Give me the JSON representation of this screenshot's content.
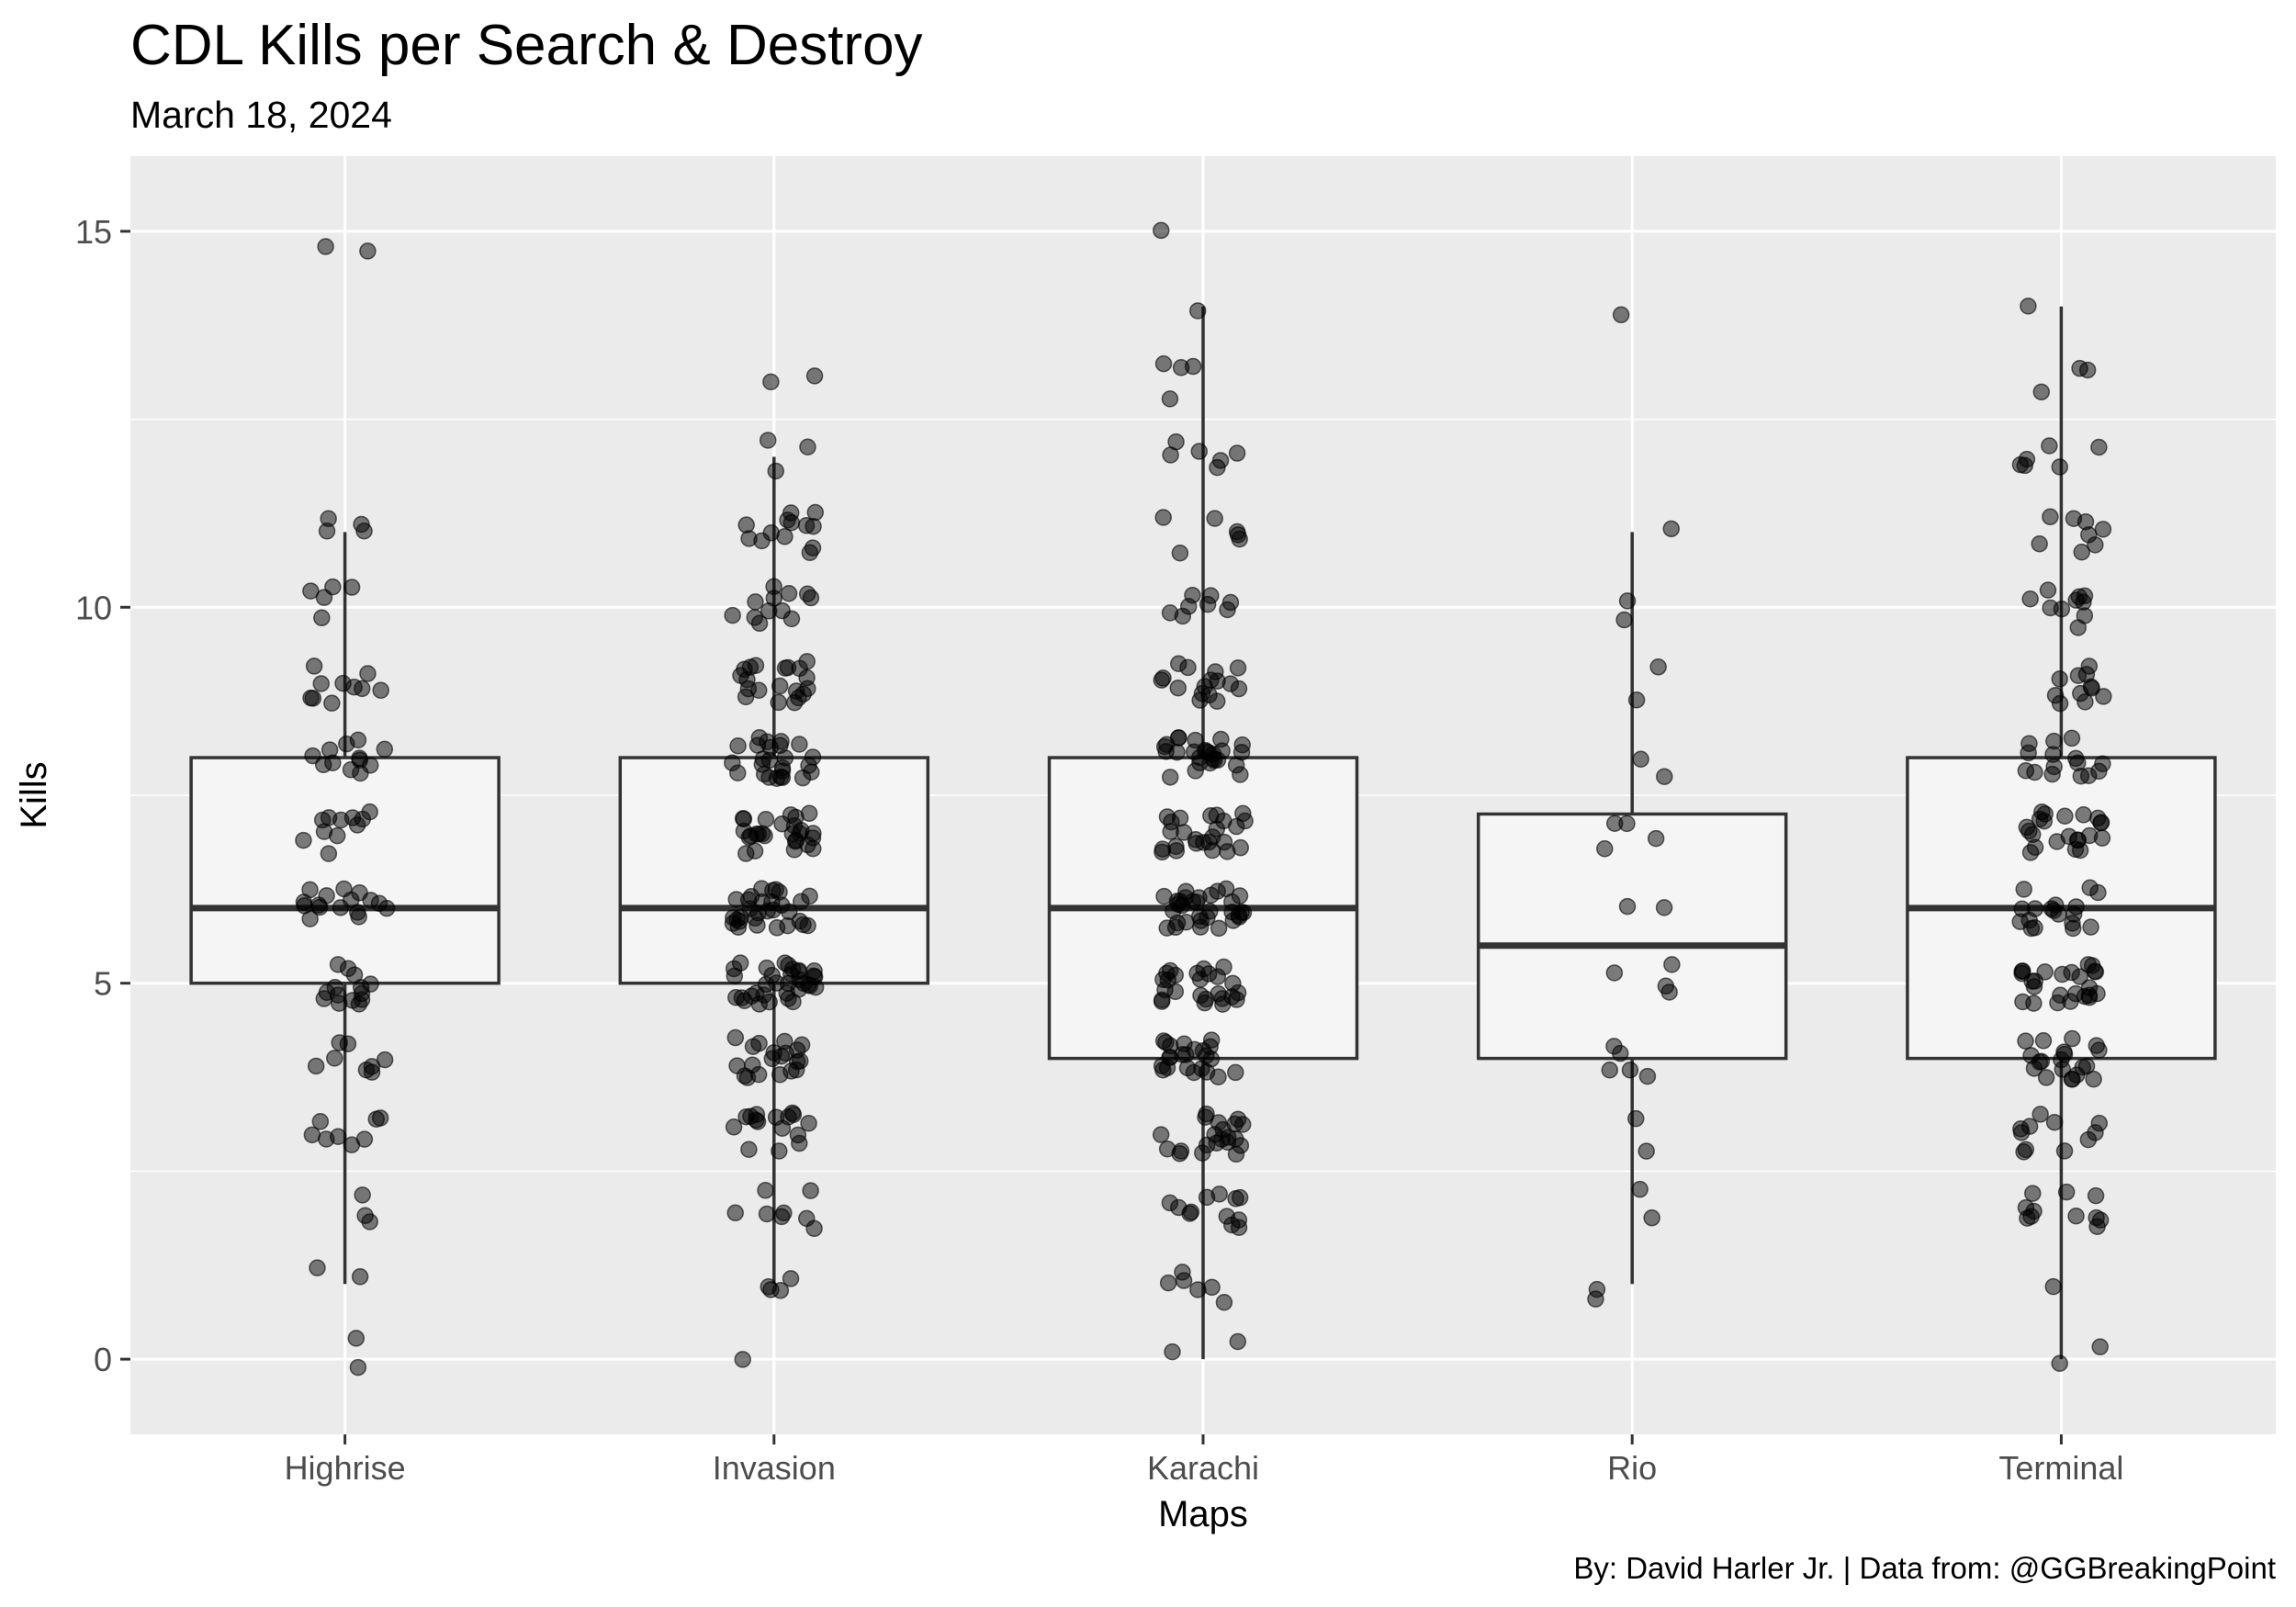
{
  "chart_data": {
    "type": "box",
    "title": "CDL Kills per Search & Destroy",
    "subtitle": "March 18, 2024",
    "caption": "By: David Harler Jr. | Data from: @GGBreakingPoint",
    "xlabel": "Maps",
    "ylabel": "Kills",
    "ylim": [
      -1,
      16
    ],
    "yticks": [
      0,
      5,
      10,
      15
    ],
    "grid": true,
    "legend": "none",
    "colors": {
      "panel": "#ebebeb",
      "grid": "#ffffff",
      "box_fill": "#f5f5f5",
      "box_line": "#333333",
      "point": "#000000"
    },
    "categories": [
      "Highrise",
      "Invasion",
      "Karachi",
      "Rio",
      "Terminal"
    ],
    "boxes": [
      {
        "name": "Highrise",
        "min": 1,
        "q1": 5,
        "median": 6,
        "q3": 8,
        "max": 11
      },
      {
        "name": "Invasion",
        "min": 1,
        "q1": 5,
        "median": 6,
        "q3": 8,
        "max": 12
      },
      {
        "name": "Karachi",
        "min": 0,
        "q1": 4,
        "median": 6,
        "q3": 8,
        "max": 14
      },
      {
        "name": "Rio",
        "min": 1,
        "q1": 4,
        "median": 5.5,
        "q3": 7.25,
        "max": 11
      },
      {
        "name": "Terminal",
        "min": 0,
        "q1": 4,
        "median": 6,
        "q3": 8,
        "max": 14
      }
    ],
    "points": {
      "Highrise": [
        0,
        0,
        1,
        1,
        2,
        2,
        2,
        3,
        3,
        3,
        3,
        3,
        3,
        3,
        3,
        4,
        4,
        4,
        4,
        4,
        4,
        4,
        4,
        5,
        5,
        5,
        5,
        5,
        5,
        5,
        5,
        5,
        5,
        5,
        5,
        5,
        5,
        6,
        6,
        6,
        6,
        6,
        6,
        6,
        6,
        6,
        6,
        6,
        6,
        6,
        6,
        6,
        6,
        7,
        7,
        7,
        7,
        7,
        7,
        7,
        7,
        7,
        7,
        7,
        8,
        8,
        8,
        8,
        8,
        8,
        8,
        8,
        8,
        8,
        8,
        8,
        9,
        9,
        9,
        9,
        9,
        9,
        9,
        9,
        9,
        9,
        10,
        10,
        10,
        10,
        10,
        11,
        11,
        11,
        11,
        15,
        15
      ],
      "Invasion": [
        0,
        1,
        1,
        1,
        1,
        2,
        2,
        2,
        2,
        2,
        2,
        2,
        2,
        3,
        3,
        3,
        3,
        3,
        3,
        3,
        3,
        3,
        3,
        3,
        3,
        3,
        3,
        3,
        3,
        4,
        4,
        4,
        4,
        4,
        4,
        4,
        4,
        4,
        4,
        4,
        4,
        4,
        4,
        4,
        4,
        4,
        4,
        4,
        4,
        5,
        5,
        5,
        5,
        5,
        5,
        5,
        5,
        5,
        5,
        5,
        5,
        5,
        5,
        5,
        5,
        5,
        5,
        5,
        5,
        5,
        5,
        5,
        5,
        5,
        5,
        5,
        5,
        5,
        5,
        5,
        5,
        5,
        5,
        6,
        6,
        6,
        6,
        6,
        6,
        6,
        6,
        6,
        6,
        6,
        6,
        6,
        6,
        6,
        6,
        6,
        6,
        6,
        6,
        6,
        6,
        6,
        6,
        6,
        6,
        6,
        6,
        6,
        6,
        7,
        7,
        7,
        7,
        7,
        7,
        7,
        7,
        7,
        7,
        7,
        7,
        7,
        7,
        7,
        7,
        7,
        7,
        7,
        7,
        7,
        7,
        7,
        7,
        7,
        7,
        7,
        8,
        8,
        8,
        8,
        8,
        8,
        8,
        8,
        8,
        8,
        8,
        8,
        8,
        8,
        8,
        8,
        8,
        8,
        8,
        8,
        8,
        8,
        8,
        8,
        8,
        9,
        9,
        9,
        9,
        9,
        9,
        9,
        9,
        9,
        9,
        9,
        9,
        9,
        9,
        9,
        9,
        9,
        9,
        9,
        9,
        10,
        10,
        10,
        10,
        10,
        10,
        10,
        10,
        10,
        10,
        10,
        10,
        11,
        11,
        11,
        11,
        11,
        11,
        11,
        11,
        11,
        11,
        11,
        11,
        11,
        12,
        12,
        12,
        13,
        13
      ],
      "Karachi": [
        0,
        0,
        1,
        1,
        1,
        1,
        1,
        1,
        2,
        2,
        2,
        2,
        2,
        2,
        2,
        2,
        2,
        2,
        2,
        2,
        3,
        3,
        3,
        3,
        3,
        3,
        3,
        3,
        3,
        3,
        3,
        3,
        3,
        3,
        3,
        3,
        3,
        3,
        3,
        3,
        3,
        4,
        4,
        4,
        4,
        4,
        4,
        4,
        4,
        4,
        4,
        4,
        4,
        4,
        4,
        4,
        4,
        4,
        4,
        4,
        4,
        4,
        4,
        4,
        5,
        5,
        5,
        5,
        5,
        5,
        5,
        5,
        5,
        5,
        5,
        5,
        5,
        5,
        5,
        5,
        5,
        5,
        5,
        5,
        5,
        5,
        5,
        5,
        5,
        6,
        6,
        6,
        6,
        6,
        6,
        6,
        6,
        6,
        6,
        6,
        6,
        6,
        6,
        6,
        6,
        6,
        6,
        6,
        6,
        6,
        6,
        6,
        6,
        6,
        6,
        6,
        6,
        6,
        6,
        6,
        6,
        7,
        7,
        7,
        7,
        7,
        7,
        7,
        7,
        7,
        7,
        7,
        7,
        7,
        7,
        7,
        7,
        7,
        7,
        7,
        7,
        7,
        7,
        7,
        7,
        7,
        8,
        8,
        8,
        8,
        8,
        8,
        8,
        8,
        8,
        8,
        8,
        8,
        8,
        8,
        8,
        8,
        8,
        8,
        8,
        8,
        8,
        8,
        8,
        8,
        8,
        8,
        9,
        9,
        9,
        9,
        9,
        9,
        9,
        9,
        9,
        9,
        9,
        9,
        9,
        9,
        9,
        9,
        10,
        10,
        10,
        10,
        10,
        10,
        10,
        10,
        11,
        11,
        11,
        11,
        11,
        11,
        12,
        12,
        12,
        12,
        12,
        12,
        13,
        13,
        13,
        13,
        14,
        15
      ],
      "Rio": [
        1,
        1,
        2,
        2,
        3,
        3,
        4,
        4,
        4,
        4,
        4,
        5,
        5,
        5,
        5,
        6,
        6,
        7,
        7,
        7,
        7,
        8,
        8,
        9,
        9,
        10,
        10,
        11,
        14
      ],
      "Terminal": [
        0,
        0,
        1,
        2,
        2,
        2,
        2,
        2,
        2,
        2,
        2,
        2,
        2,
        2,
        3,
        3,
        3,
        3,
        3,
        3,
        3,
        3,
        3,
        3,
        3,
        4,
        4,
        4,
        4,
        4,
        4,
        4,
        4,
        4,
        4,
        4,
        4,
        4,
        4,
        4,
        4,
        4,
        4,
        4,
        4,
        5,
        5,
        5,
        5,
        5,
        5,
        5,
        5,
        5,
        5,
        5,
        5,
        5,
        5,
        5,
        5,
        5,
        5,
        5,
        5,
        5,
        5,
        5,
        5,
        5,
        6,
        6,
        6,
        6,
        6,
        6,
        6,
        6,
        6,
        6,
        6,
        6,
        6,
        6,
        6,
        6,
        6,
        6,
        7,
        7,
        7,
        7,
        7,
        7,
        7,
        7,
        7,
        7,
        7,
        7,
        7,
        7,
        7,
        7,
        7,
        7,
        7,
        7,
        7,
        7,
        8,
        8,
        8,
        8,
        8,
        8,
        8,
        8,
        8,
        8,
        8,
        8,
        8,
        8,
        8,
        9,
        9,
        9,
        9,
        9,
        9,
        9,
        9,
        9,
        9,
        9,
        10,
        10,
        10,
        10,
        10,
        10,
        10,
        10,
        10,
        10,
        11,
        11,
        11,
        11,
        11,
        11,
        11,
        11,
        12,
        12,
        12,
        12,
        12,
        12,
        13,
        13,
        13,
        14
      ]
    }
  }
}
